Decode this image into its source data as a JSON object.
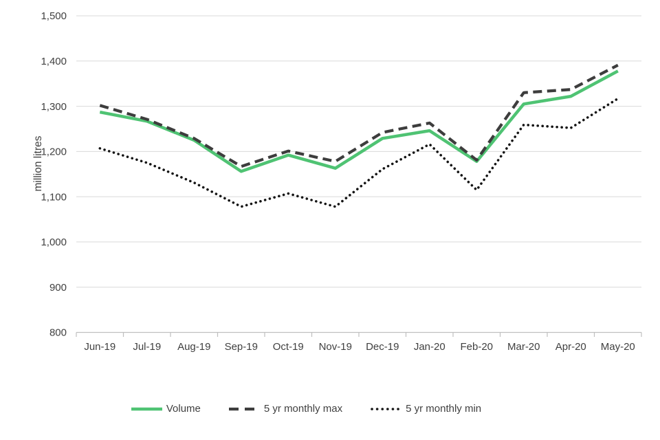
{
  "chart_data": {
    "type": "line",
    "title": "",
    "xlabel": "",
    "ylabel": "million litres",
    "categories": [
      "Jun-19",
      "Jul-19",
      "Aug-19",
      "Sep-19",
      "Oct-19",
      "Nov-19",
      "Dec-19",
      "Jan-20",
      "Feb-20",
      "Mar-20",
      "Apr-20",
      "May-20"
    ],
    "series": [
      {
        "name": "Volume",
        "style": "solid",
        "color": "#4FC373",
        "values": [
          1287,
          1267,
          1225,
          1156,
          1192,
          1163,
          1229,
          1246,
          1178,
          1305,
          1322,
          1378
        ]
      },
      {
        "name": "5 yr monthly max",
        "style": "dashed",
        "color": "#3D3D3D",
        "values": [
          1302,
          1271,
          1229,
          1167,
          1201,
          1178,
          1242,
          1263,
          1181,
          1330,
          1337,
          1391
        ]
      },
      {
        "name": "5 yr monthly min",
        "style": "dotted",
        "color": "#141414",
        "values": [
          1207,
          1175,
          1131,
          1078,
          1107,
          1078,
          1161,
          1216,
          1115,
          1259,
          1252,
          1317
        ]
      }
    ],
    "ylim": [
      800,
      1500
    ],
    "ytick_labels": [
      "1,500",
      "1,400",
      "1,300",
      "1,200",
      "1,100",
      "1,000",
      "900",
      "800"
    ],
    "grid": "horizontal",
    "legend_position": "bottom",
    "grid_color": "#D9D9D9",
    "axis_color": "#BFBFBF",
    "text_color": "#404040"
  }
}
